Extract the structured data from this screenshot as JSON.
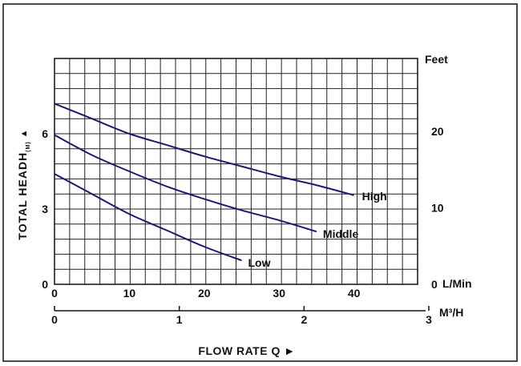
{
  "chart_data": {
    "type": "line",
    "xlabel": "FLOW RATE Q ►",
    "ylabel_main": "TOTAL HEADH",
    "ylabel_sub": "(M)",
    "ylabel_arrow": "▲",
    "y2label": "Feet",
    "x_unit": "L/Min",
    "x2_unit": "M³/H",
    "x_ticks": [
      "0",
      "10",
      "20",
      "30",
      "40"
    ],
    "x2_ticks": [
      "0",
      "1",
      "2",
      "3"
    ],
    "y_ticks": [
      "0",
      "3",
      "6"
    ],
    "y2_ticks": [
      "0",
      "10",
      "20"
    ],
    "xlim": [
      0,
      48.5
    ],
    "ylim": [
      0,
      9
    ],
    "grid": true,
    "colors": {
      "series": "#1c1a6e",
      "grid": "#222222"
    },
    "series": [
      {
        "name": "High",
        "x": [
          0,
          5,
          10,
          15,
          20,
          25,
          30,
          35,
          40
        ],
        "y": [
          7.2,
          6.6,
          6.0,
          5.55,
          5.1,
          4.7,
          4.3,
          3.95,
          3.55
        ]
      },
      {
        "name": "Middle",
        "x": [
          0,
          5,
          10,
          15,
          20,
          25,
          30,
          35
        ],
        "y": [
          5.95,
          5.15,
          4.5,
          3.9,
          3.4,
          2.95,
          2.55,
          2.1
        ]
      },
      {
        "name": "Low",
        "x": [
          0,
          5,
          10,
          15,
          20,
          25
        ],
        "y": [
          4.4,
          3.6,
          2.8,
          2.15,
          1.5,
          0.95
        ]
      }
    ]
  }
}
